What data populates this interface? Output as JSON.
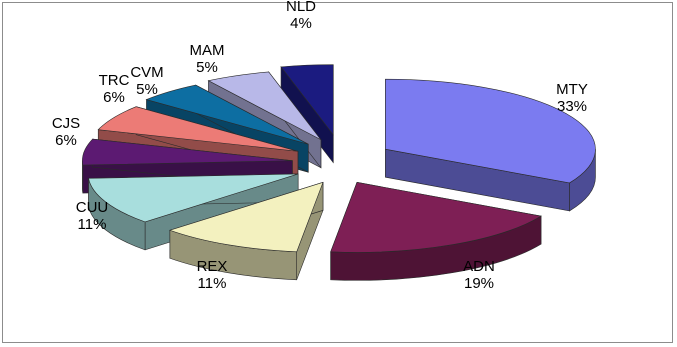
{
  "chart_data": {
    "type": "pie",
    "style": "3d-exploded",
    "title": "",
    "legend": "none",
    "slices": [
      {
        "label": "MTY",
        "value": 33,
        "value_label": "33%",
        "color": "#7b7bf0"
      },
      {
        "label": "ADN",
        "value": 19,
        "value_label": "19%",
        "color": "#7e1f55"
      },
      {
        "label": "REX",
        "value": 11,
        "value_label": "11%",
        "color": "#f3f1bf"
      },
      {
        "label": "CUU",
        "value": 11,
        "value_label": "11%",
        "color": "#a8dedd"
      },
      {
        "label": "CJS",
        "value": 6,
        "value_label": "6%",
        "color": "#5c1a72"
      },
      {
        "label": "TRC",
        "value": 6,
        "value_label": "6%",
        "color": "#ec7b76"
      },
      {
        "label": "CVM",
        "value": 5,
        "value_label": "5%",
        "color": "#0d6ea2"
      },
      {
        "label": "MAM",
        "value": 5,
        "value_label": "5%",
        "color": "#b8b8e8"
      },
      {
        "label": "NLD",
        "value": 4,
        "value_label": "4%",
        "color": "#1b1b80"
      }
    ]
  }
}
